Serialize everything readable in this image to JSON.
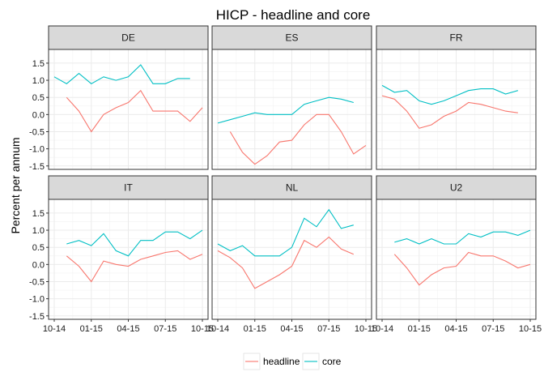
{
  "chart_data": {
    "type": "line",
    "title": "HICP - headline and core",
    "ylabel": "Percent per annum",
    "xlabel": "",
    "ylim": [
      -1.6,
      1.9
    ],
    "yticks": [
      -1.5,
      -1.0,
      -0.5,
      0.0,
      0.5,
      1.0,
      1.5
    ],
    "ytick_labels": [
      "-1.5",
      "-1.0",
      "-0.5",
      "0.0",
      "0.5",
      "1.0",
      "1.5"
    ],
    "xticks": [
      "10-14",
      "01-15",
      "04-15",
      "07-15",
      "10-15"
    ],
    "x": [
      "10-14",
      "11-14",
      "12-14",
      "01-15",
      "02-15",
      "03-15",
      "04-15",
      "05-15",
      "06-15",
      "07-15",
      "08-15",
      "09-15",
      "10-15"
    ],
    "legend_position": "bottom",
    "grid": true,
    "series_styles": [
      {
        "key": "headline",
        "label": "headline",
        "color": "#F8766D"
      },
      {
        "key": "core",
        "label": "core",
        "color": "#00BFC4"
      }
    ],
    "panels": [
      {
        "name": "DE",
        "headline": [
          null,
          0.5,
          0.1,
          -0.5,
          0.0,
          0.2,
          0.35,
          0.7,
          0.1,
          0.1,
          0.1,
          -0.2,
          0.2
        ],
        "core": [
          1.1,
          0.9,
          1.2,
          0.9,
          1.1,
          1.0,
          1.1,
          1.45,
          0.9,
          0.9,
          1.05,
          1.05,
          null
        ]
      },
      {
        "name": "ES",
        "headline": [
          null,
          -0.5,
          -1.1,
          -1.45,
          -1.2,
          -0.8,
          -0.75,
          -0.3,
          0.0,
          0.0,
          -0.5,
          -1.15,
          -0.9
        ],
        "core": [
          -0.25,
          -0.15,
          -0.05,
          0.05,
          0.0,
          0.0,
          0.0,
          0.3,
          0.4,
          0.5,
          0.45,
          0.35,
          null
        ]
      },
      {
        "name": "FR",
        "headline": [
          0.55,
          0.45,
          0.1,
          -0.4,
          -0.3,
          -0.05,
          0.1,
          0.35,
          0.3,
          0.2,
          0.1,
          0.05,
          null
        ],
        "core": [
          0.85,
          0.65,
          0.7,
          0.4,
          0.3,
          0.4,
          0.55,
          0.7,
          0.75,
          0.75,
          0.6,
          0.7,
          null
        ]
      },
      {
        "name": "IT",
        "headline": [
          null,
          0.25,
          -0.05,
          -0.5,
          0.1,
          0.0,
          -0.05,
          0.15,
          0.25,
          0.35,
          0.4,
          0.15,
          0.3
        ],
        "core": [
          null,
          0.6,
          0.7,
          0.55,
          0.9,
          0.4,
          0.25,
          0.7,
          0.7,
          0.95,
          0.95,
          0.75,
          1.0
        ]
      },
      {
        "name": "NL",
        "headline": [
          0.4,
          0.2,
          -0.1,
          -0.7,
          -0.5,
          -0.3,
          -0.05,
          0.7,
          0.5,
          0.8,
          0.45,
          0.3,
          null
        ],
        "core": [
          0.6,
          0.4,
          0.55,
          0.25,
          0.25,
          0.25,
          0.5,
          1.35,
          1.1,
          1.6,
          1.05,
          1.15,
          null
        ]
      },
      {
        "name": "U2",
        "headline": [
          null,
          0.3,
          -0.1,
          -0.6,
          -0.3,
          -0.1,
          -0.05,
          0.35,
          0.25,
          0.25,
          0.1,
          -0.1,
          0.0
        ],
        "core": [
          null,
          0.65,
          0.75,
          0.6,
          0.75,
          0.6,
          0.6,
          0.9,
          0.8,
          0.95,
          0.95,
          0.85,
          1.0
        ]
      }
    ]
  }
}
